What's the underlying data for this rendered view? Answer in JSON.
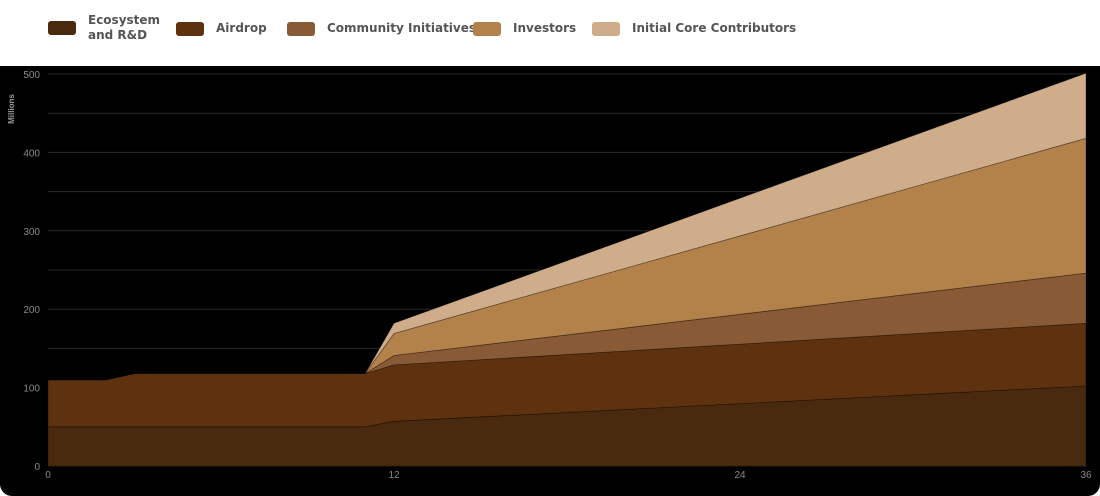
{
  "legend": [
    {
      "label": "Ecosystem\nand R&D",
      "color": "#4a2a0e"
    },
    {
      "label": "Airdrop",
      "color": "#5e310f"
    },
    {
      "label": "Community Initiatives",
      "color": "#895a36"
    },
    {
      "label": "Investors",
      "color": "#b3824a"
    },
    {
      "label": "Initial Core Contributors",
      "color": "#d0ad8a"
    }
  ],
  "chart_data": {
    "type": "area",
    "stacked": true,
    "ylabel": "Millions",
    "xlabel": "",
    "xlim": [
      0,
      36
    ],
    "ylim": [
      0,
      500
    ],
    "x_ticks": [
      0,
      12,
      24,
      36
    ],
    "y_ticks": [
      0,
      100,
      200,
      300,
      400,
      500
    ],
    "grid": true,
    "legend_position": "top",
    "x": [
      0,
      2,
      3,
      11,
      12,
      36
    ],
    "series": [
      {
        "name": "Ecosystem\nand R&D",
        "color": "#4a2a0e",
        "values": [
          50,
          50,
          50,
          50,
          57,
          102
        ]
      },
      {
        "name": "Airdrop",
        "color": "#5e310f",
        "values": [
          60,
          60,
          68,
          68,
          72,
          80
        ]
      },
      {
        "name": "Community Initiatives",
        "color": "#895a36",
        "values": [
          0,
          0,
          0,
          0,
          12,
          64
        ]
      },
      {
        "name": "Investors",
        "color": "#b3824a",
        "values": [
          0,
          0,
          0,
          0,
          28,
          172
        ]
      },
      {
        "name": "Initial Core Contributors",
        "color": "#d0ad8a",
        "values": [
          0,
          0,
          0,
          0,
          13,
          83
        ]
      }
    ]
  }
}
